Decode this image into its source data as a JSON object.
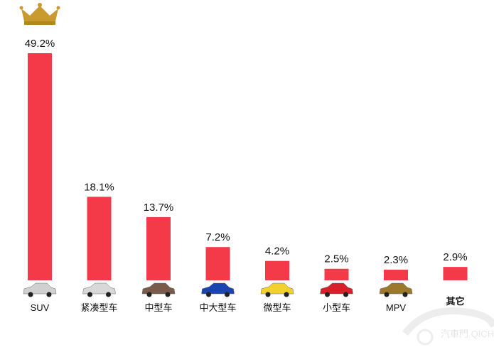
{
  "chart_data": {
    "type": "bar",
    "categories": [
      "SUV",
      "紧凑型车",
      "中型车",
      "中大型车",
      "微型车",
      "小型车",
      "MPV",
      "其它"
    ],
    "values": [
      49.2,
      18.1,
      13.7,
      7.2,
      4.2,
      2.5,
      2.3,
      2.9
    ],
    "value_labels": [
      "49.2%",
      "18.1%",
      "13.7%",
      "7.2%",
      "4.2%",
      "2.5%",
      "2.3%",
      "2.9%"
    ],
    "ylim": [
      0,
      50
    ],
    "grid": false,
    "bar_color": "#f43a48",
    "category_icon_colors": [
      "#d0d0d0",
      "#d8d8d8",
      "#7a5a4a",
      "#1a44b0",
      "#f2d030",
      "#d8202a",
      "#9a7a2a",
      ""
    ],
    "top_icon": "crown-icon",
    "watermark": "汽車門 QICHEMEN.COM"
  }
}
